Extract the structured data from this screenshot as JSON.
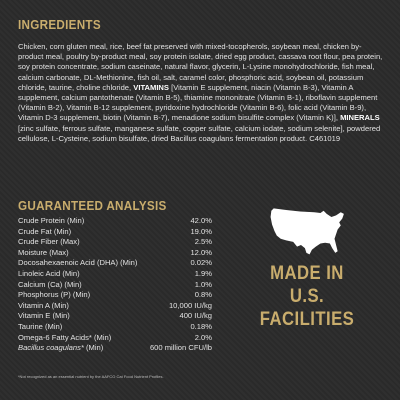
{
  "ingredients": {
    "title": "INGREDIENTS",
    "text_main": "Chicken, corn gluten meal, rice, beef fat preserved with mixed-tocopherols, soybean meal, chicken by-product meal, poultry by-product meal, soy protein isolate, dried egg product, cassava root flour, pea protein, soy protein concentrate, sodium caseinate, natural flavor, glycerin, L-Lysine monohydrochloride, fish meal, calcium carbonate, DL-Methionine, fish oil, salt, caramel color, phosphoric acid, soybean oil, potassium chloride, taurine, choline chloride,",
    "vitamins_label": "VITAMINS",
    "vitamins_text": "[Vitamin E supplement, niacin (Vitamin B-3), Vitamin A supplement, calcium pantothenate (Vitamin B-5), thiamine mononitrate (Vitamin B-1), riboflavin supplement (Vitamin B-2), Vitamin B-12 supplement, pyridoxine hydrochloride (Vitamin B-6), folic acid (Vitamin B-9), Vitamin D-3 supplement, biotin (Vitamin B-7), menadione sodium bisulfite complex (Vitamin K)],",
    "minerals_label": "MINERALS",
    "minerals_text": "[zinc sulfate, ferrous sulfate, manganese sulfate, copper sulfate, calcium iodate, sodium selenite], powdered cellulose, L-Cysteine, sodium bisulfate, dried Bacillus coagulans fermentation product. C461019"
  },
  "guaranteed_analysis": {
    "title": "GUARANTEED ANALYSIS",
    "rows": [
      {
        "label": "Crude Protein (Min)",
        "value": "42.0%"
      },
      {
        "label": "Crude Fat (Min)",
        "value": "19.0%"
      },
      {
        "label": "Crude Fiber (Max)",
        "value": "2.5%"
      },
      {
        "label": "Moisture (Max)",
        "value": "12.0%"
      },
      {
        "label": "Docosahexaenoic Acid (DHA) (Min)",
        "value": "0.02%"
      },
      {
        "label": "Linoleic Acid (Min)",
        "value": "1.9%"
      },
      {
        "label": "Calcium (Ca) (Min)",
        "value": "1.0%"
      },
      {
        "label": "Phosphorus (P) (Min)",
        "value": "0.8%"
      },
      {
        "label": "Vitamin A (Min)",
        "value": "10,000 IU/kg"
      },
      {
        "label": "Vitamin E (Min)",
        "value": "400 IU/kg"
      },
      {
        "label": "Taurine (Min)",
        "value": "0.18%"
      },
      {
        "label": "Omega-6 Fatty Acids* (Min)",
        "value": "2.0%"
      }
    ],
    "last_row": {
      "label_italic": "Bacillus coagulans*",
      "label_rest": " (Min)",
      "value": "600 million CFU/lb"
    }
  },
  "made_in": {
    "line1": "MADE IN",
    "line2": "U.S.",
    "line3": "FACILITIES",
    "map_icon": "usa-map-icon"
  },
  "footnote": "*Not recognized as an essential nutrient by the AAFCO Cat Food Nutrient Profiles.",
  "colors": {
    "background": "#2b2b2b",
    "accent_gold": "#c9ad6d",
    "text": "#e2e2e2"
  }
}
